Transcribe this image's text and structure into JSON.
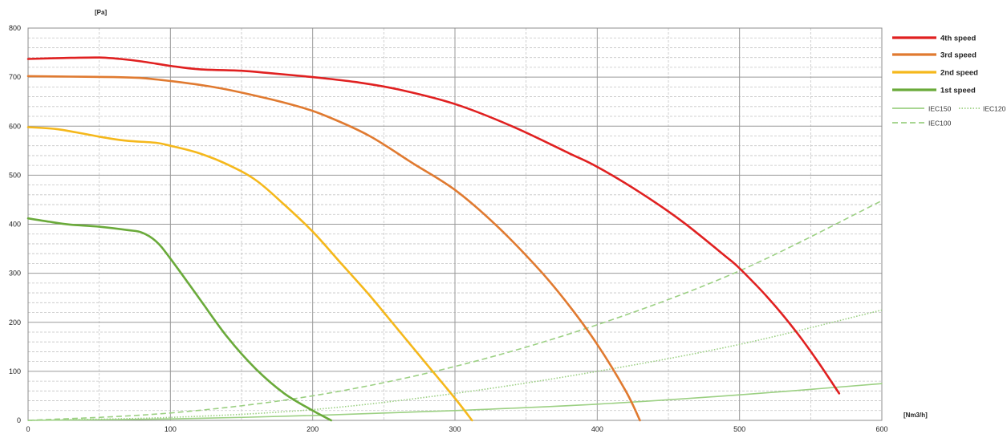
{
  "chart_data": {
    "type": "line",
    "title": "",
    "xlabel": "[Nm3/h]",
    "ylabel": "[Pa]",
    "xlim": [
      0,
      600
    ],
    "ylim": [
      0,
      800
    ],
    "x_ticks": [
      "0",
      "100",
      "200",
      "300",
      "400",
      "500",
      "600"
    ],
    "y_ticks": [
      "0",
      "100",
      "200",
      "300",
      "400",
      "500",
      "600",
      "700",
      "800"
    ],
    "grid": true,
    "legend_position": "right",
    "series": [
      {
        "name": "4th speed",
        "color": "#e02020",
        "style": "solid",
        "weight": "heavy",
        "x": [
          0,
          25,
          50,
          65,
          80,
          100,
          120,
          150,
          170,
          200,
          230,
          260,
          300,
          340,
          380,
          400,
          430,
          460,
          490,
          500,
          520,
          540,
          555,
          570
        ],
        "y": [
          737,
          739,
          740,
          737,
          732,
          723,
          716,
          713,
          708,
          700,
          690,
          675,
          645,
          600,
          545,
          517,
          465,
          405,
          335,
          310,
          250,
          180,
          120,
          55
        ]
      },
      {
        "name": "3rd speed",
        "color": "#e07a30",
        "style": "solid",
        "weight": "heavy",
        "x": [
          0,
          30,
          60,
          80,
          100,
          130,
          160,
          190,
          210,
          240,
          270,
          300,
          330,
          360,
          380,
          400,
          420,
          430
        ],
        "y": [
          702,
          701,
          700,
          698,
          692,
          680,
          662,
          640,
          620,
          580,
          525,
          470,
          395,
          305,
          235,
          155,
          60,
          0
        ]
      },
      {
        "name": "2nd speed",
        "color": "#f5b81b",
        "style": "solid",
        "weight": "heavy",
        "x": [
          0,
          20,
          40,
          55,
          70,
          90,
          100,
          120,
          140,
          160,
          180,
          200,
          220,
          240,
          260,
          280,
          300,
          312
        ],
        "y": [
          598,
          594,
          584,
          576,
          570,
          566,
          560,
          545,
          522,
          490,
          440,
          385,
          320,
          255,
          185,
          115,
          45,
          0
        ]
      },
      {
        "name": "1st speed",
        "color": "#6aaa3a",
        "style": "solid",
        "weight": "heavy",
        "x": [
          0,
          15,
          30,
          50,
          70,
          80,
          90,
          100,
          120,
          140,
          160,
          180,
          200,
          213
        ],
        "y": [
          412,
          405,
          399,
          395,
          388,
          383,
          365,
          330,
          250,
          170,
          105,
          55,
          20,
          0
        ]
      },
      {
        "name": "IEC150",
        "color": "#9cd083",
        "style": "solid",
        "weight": "light",
        "x": [
          0,
          100,
          200,
          300,
          400,
          500,
          600
        ],
        "y": [
          0,
          3,
          10,
          20,
          33,
          52,
          75
        ]
      },
      {
        "name": "IEC120",
        "color": "#9cd083",
        "style": "dotted",
        "weight": "light",
        "x": [
          0,
          100,
          200,
          300,
          400,
          500,
          600
        ],
        "y": [
          0,
          6,
          22,
          55,
          100,
          155,
          225
        ]
      },
      {
        "name": "IEC100",
        "color": "#9cd083",
        "style": "dashed",
        "weight": "light",
        "x": [
          0,
          100,
          200,
          300,
          400,
          500,
          600
        ],
        "y": [
          0,
          15,
          50,
          110,
          195,
          305,
          448
        ]
      }
    ]
  }
}
